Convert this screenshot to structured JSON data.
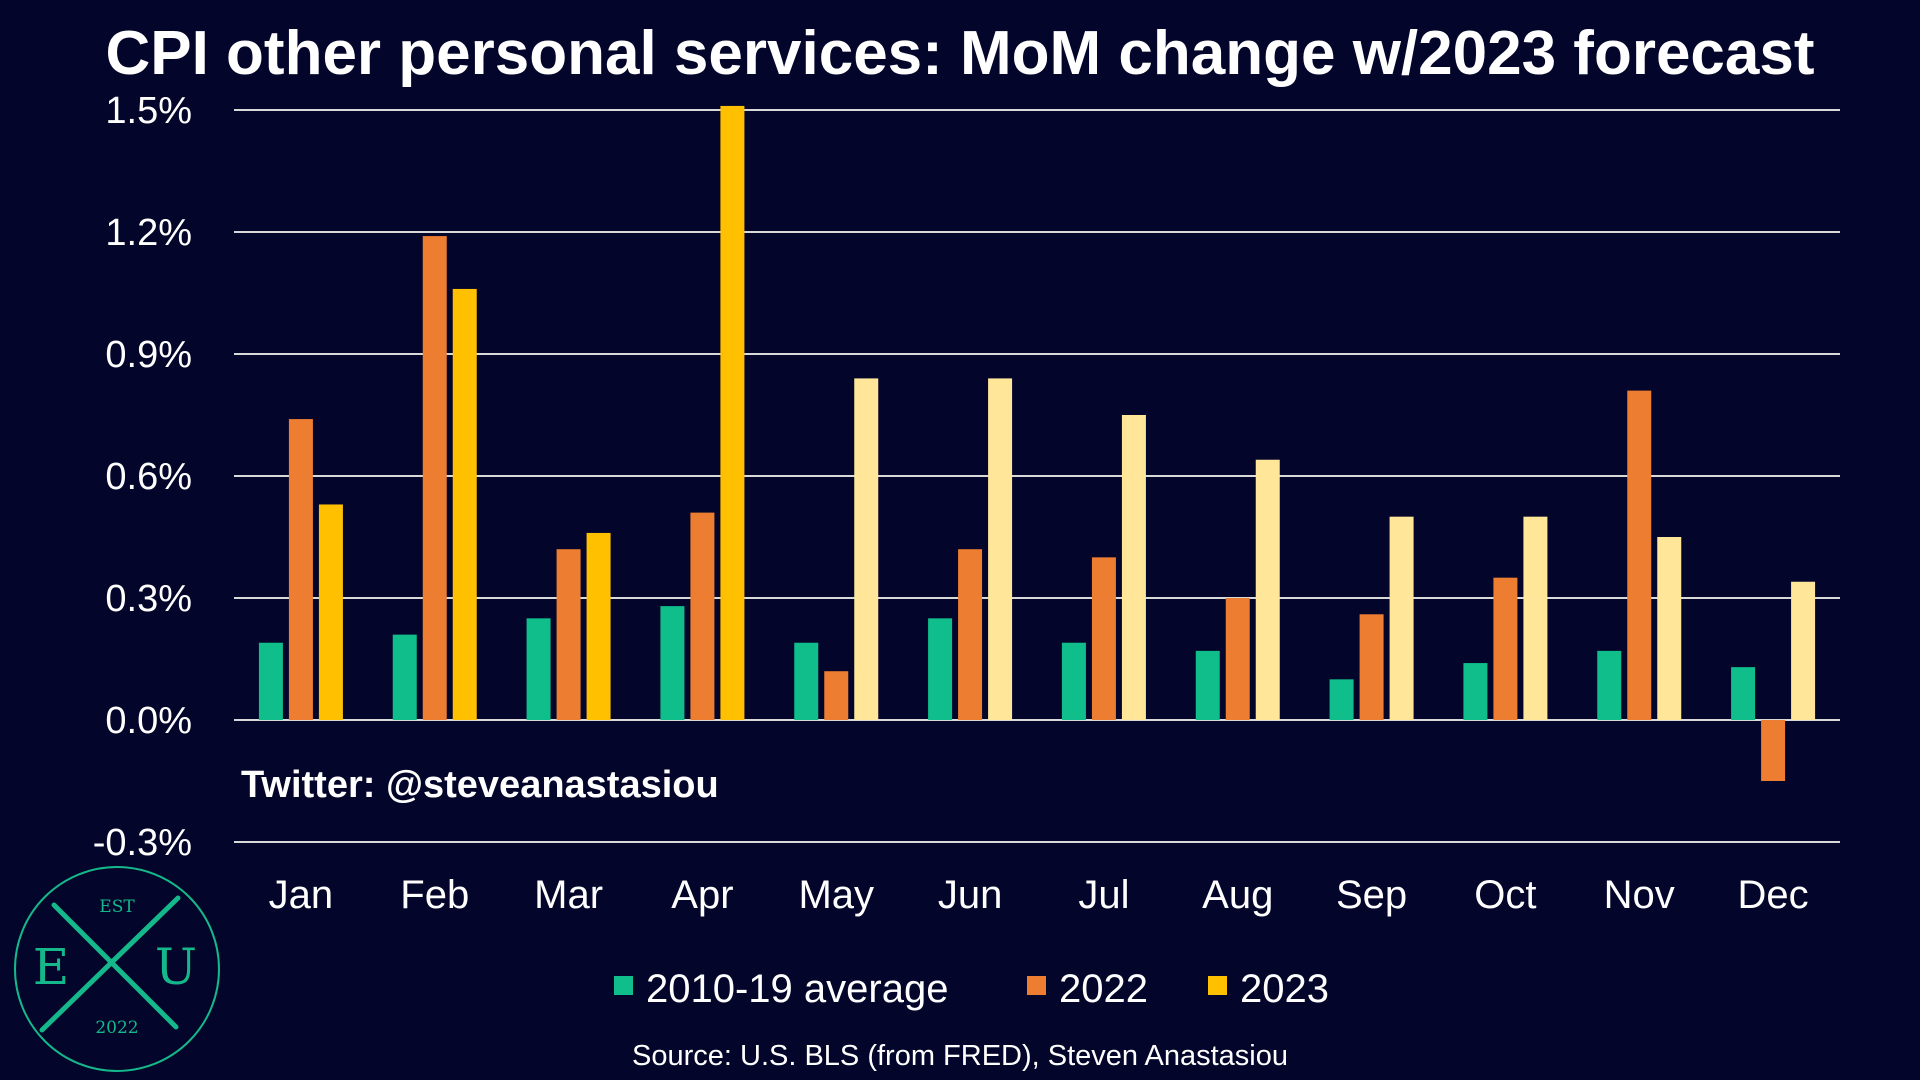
{
  "chart_data": {
    "type": "bar",
    "title": "CPI other personal services: MoM change w/2023 forecast",
    "xlabel": "",
    "ylabel": "",
    "ylim": [
      -0.3,
      1.5
    ],
    "yticks": [
      "1.5%",
      "1.2%",
      "0.9%",
      "0.6%",
      "0.3%",
      "0.0%",
      "-0.3%"
    ],
    "ytick_values": [
      1.5,
      1.2,
      0.9,
      0.6,
      0.3,
      0.0,
      -0.3
    ],
    "grid": true,
    "legend_position": "bottom",
    "categories": [
      "Jan",
      "Feb",
      "Mar",
      "Apr",
      "May",
      "Jun",
      "Jul",
      "Aug",
      "Sep",
      "Oct",
      "Nov",
      "Dec"
    ],
    "series": [
      {
        "name": "2010-19 average",
        "color": "#10be8c",
        "values": [
          0.19,
          0.21,
          0.25,
          0.28,
          0.19,
          0.25,
          0.19,
          0.17,
          0.1,
          0.14,
          0.17,
          0.13
        ]
      },
      {
        "name": "2022",
        "color": "#ec7d31",
        "values": [
          0.74,
          1.19,
          0.42,
          0.51,
          0.12,
          0.42,
          0.4,
          0.3,
          0.26,
          0.35,
          0.81,
          -0.15
        ]
      },
      {
        "name": "2023",
        "color": "#ffc000",
        "values": [
          0.53,
          1.06,
          0.46,
          1.51,
          0.84,
          0.84,
          0.75,
          0.64,
          0.5,
          0.5,
          0.45,
          0.34
        ],
        "point_colors": [
          "#ffc000",
          "#ffc000",
          "#ffc000",
          "#ffc000",
          "#ffe699",
          "#ffe699",
          "#ffe699",
          "#ffe699",
          "#ffe699",
          "#ffe699",
          "#ffe699",
          "#ffe699"
        ]
      }
    ]
  },
  "annotations": {
    "twitter": "Twitter: @steveanastasiou",
    "source": "Source: U.S. BLS (from FRED), Steven Anastasiou"
  },
  "logo": {
    "top_text": "EST",
    "left_letter": "E",
    "right_letter": "U",
    "bottom_text": "2022",
    "color": "#14b88a"
  }
}
